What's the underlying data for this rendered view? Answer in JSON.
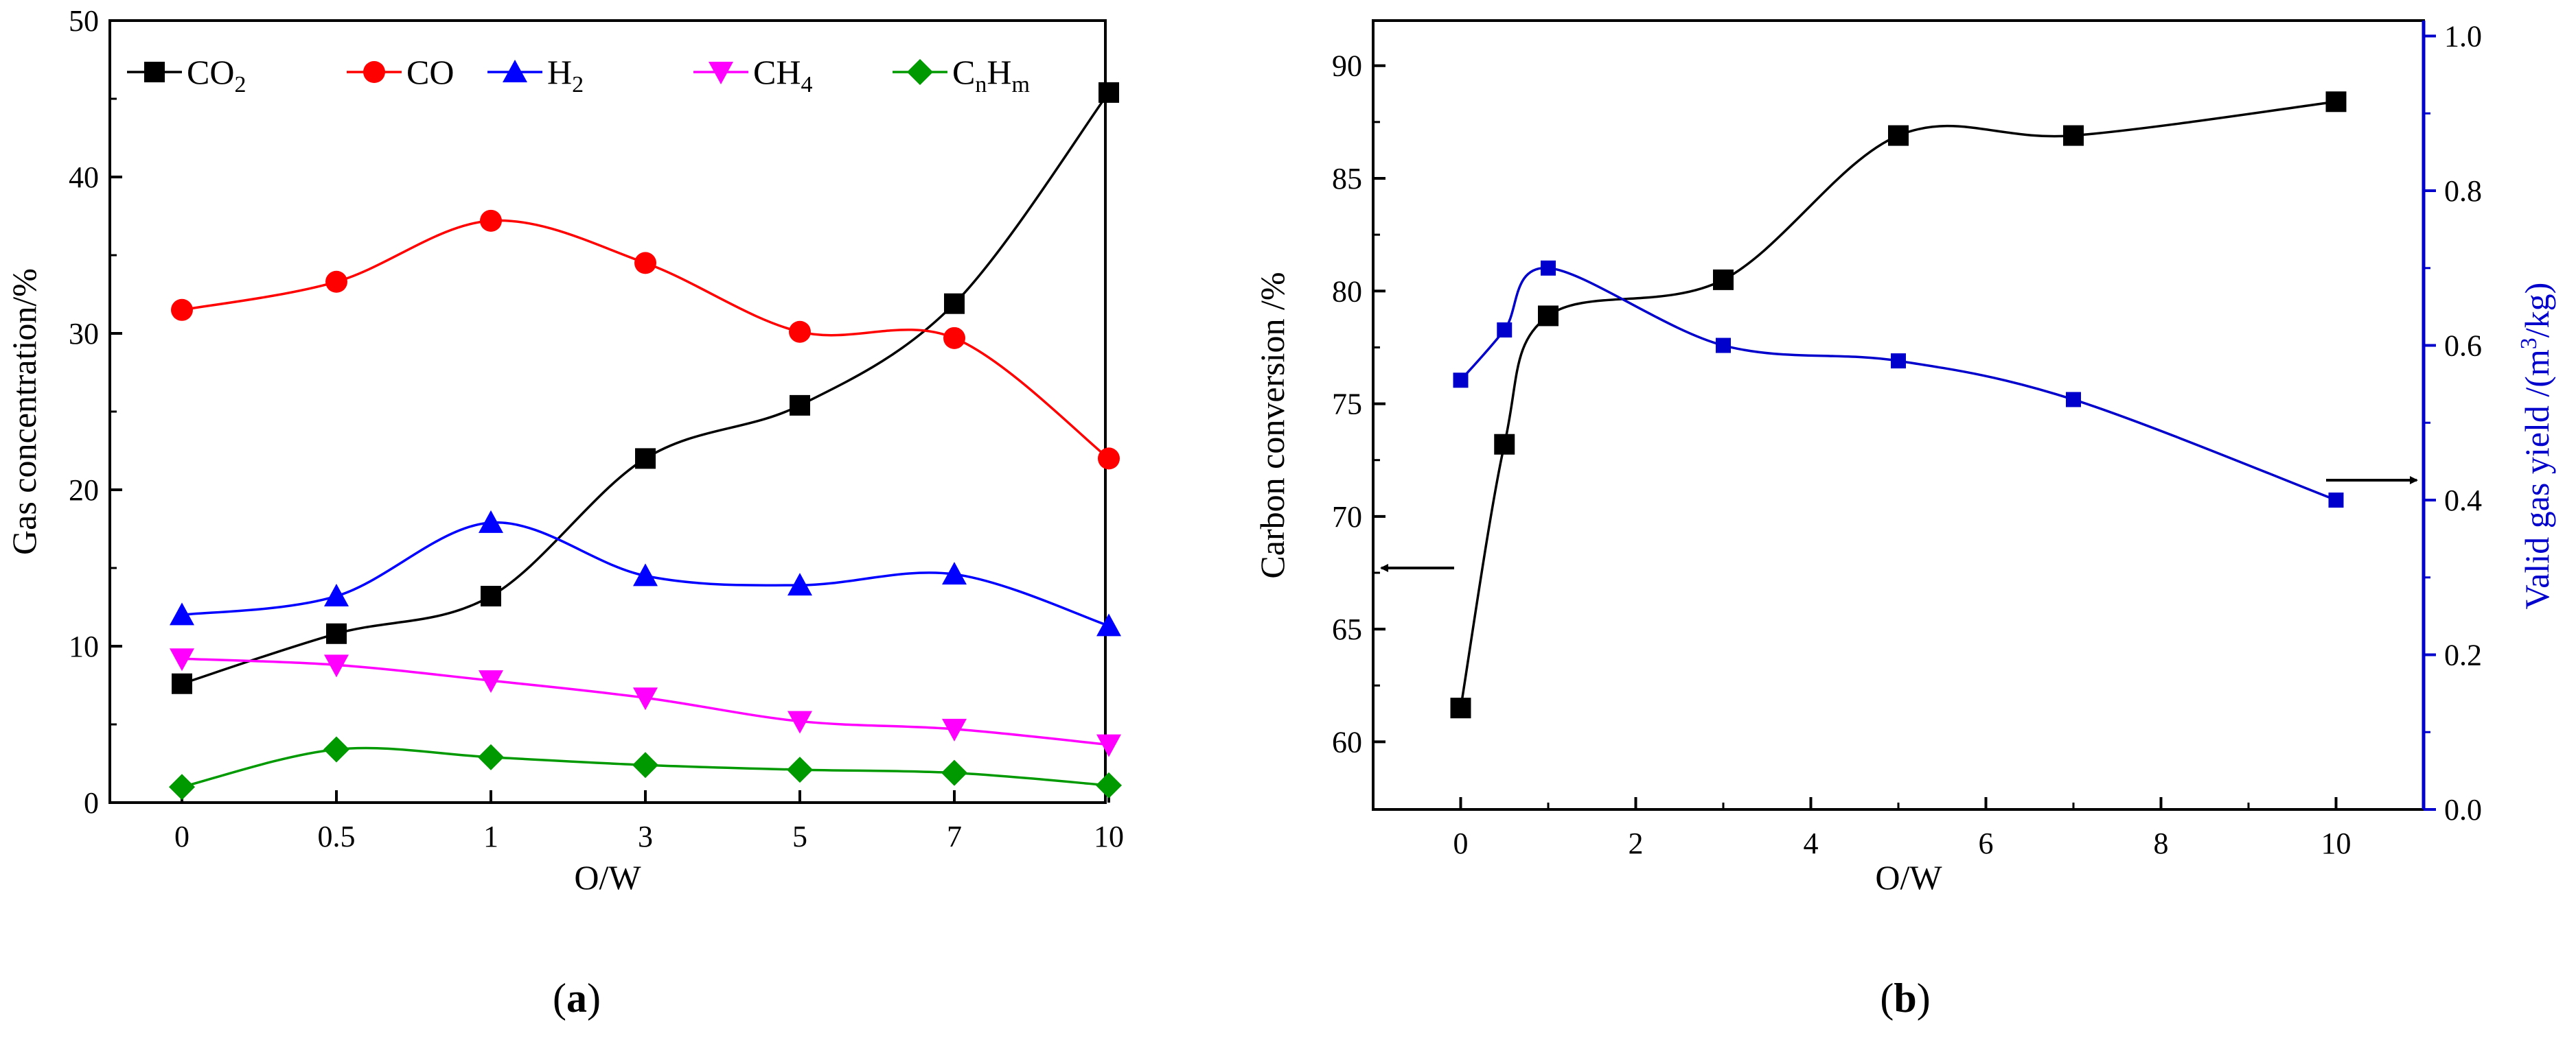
{
  "panel_captions": {
    "a_open": "(",
    "a_letter": "a",
    "a_close": ")",
    "b_open": "(",
    "b_letter": "b",
    "b_close": ")"
  },
  "chart_data": [
    {
      "id": "a",
      "type": "line",
      "xlabel": "O/W",
      "ylabel": "Gas concentration/%",
      "categories": [
        "0",
        "0.5",
        "1",
        "3",
        "5",
        "7",
        "10"
      ],
      "ylim": [
        0,
        50
      ],
      "yticks": [
        0,
        10,
        20,
        30,
        40,
        50
      ],
      "grid": false,
      "legend_position": "top",
      "series": [
        {
          "name": "CO₂",
          "base": "CO",
          "sub": "2",
          "color": "#000000",
          "marker": "square",
          "values": [
            7.6,
            10.8,
            13.2,
            22.0,
            25.4,
            31.9,
            45.4
          ]
        },
        {
          "name": "CO",
          "base": "CO",
          "sub": "",
          "color": "#ff0000",
          "marker": "circle",
          "values": [
            31.5,
            33.3,
            37.2,
            34.5,
            30.1,
            29.7,
            22.0
          ]
        },
        {
          "name": "H₂",
          "base": "H",
          "sub": "2",
          "color": "#0000ff",
          "marker": "triangle-up",
          "values": [
            12.0,
            13.2,
            17.9,
            14.5,
            13.9,
            14.6,
            11.3
          ]
        },
        {
          "name": "CH₄",
          "base": "CH",
          "sub": "4",
          "color": "#ff00ff",
          "marker": "triangle-down",
          "values": [
            9.2,
            8.8,
            7.8,
            6.7,
            5.2,
            4.7,
            3.7
          ]
        },
        {
          "name": "CₙHₘ",
          "base": "C",
          "sub": "n",
          "base2": "H",
          "sub2": "m",
          "color": "#009900",
          "marker": "diamond",
          "values": [
            1.0,
            3.4,
            2.9,
            2.4,
            2.1,
            1.9,
            1.1
          ]
        }
      ]
    },
    {
      "id": "b",
      "type": "scatter",
      "xlabel": "O/W",
      "ylabel_left": "Carbon conversion /%",
      "ylabel_right_base": "Valid gas yield /(m",
      "ylabel_right_sup": "3",
      "ylabel_right_tail": "/kg)",
      "xlim": [
        -1,
        11
      ],
      "xticks": [
        0,
        2,
        4,
        6,
        8,
        10
      ],
      "ylim_left": [
        57,
        92
      ],
      "yticks_left": [
        60,
        65,
        70,
        75,
        80,
        85,
        90
      ],
      "ylim_right": [
        0.0,
        1.02
      ],
      "yticks_right": [
        "0.0",
        "0.2",
        "0.4",
        "0.6",
        "0.8",
        "1.0"
      ],
      "grid": false,
      "series": [
        {
          "name": "Carbon conversion",
          "axis": "left",
          "color": "#000000",
          "marker": "square",
          "x": [
            0,
            0.5,
            1,
            3,
            5,
            7,
            10
          ],
          "y": [
            61.5,
            73.2,
            78.9,
            80.5,
            86.9,
            86.9,
            88.4
          ]
        },
        {
          "name": "Valid gas yield",
          "axis": "right",
          "color": "#0000cc",
          "marker": "square",
          "x": [
            0,
            0.5,
            1,
            3,
            5,
            7,
            10
          ],
          "y": [
            0.555,
            0.62,
            0.7,
            0.6,
            0.58,
            0.53,
            0.4
          ]
        }
      ],
      "annotations": [
        {
          "type": "arrow",
          "points_to": "left-axis",
          "attached_series": "Carbon conversion"
        },
        {
          "type": "arrow",
          "points_to": "right-axis",
          "attached_series": "Valid gas yield"
        }
      ]
    }
  ]
}
